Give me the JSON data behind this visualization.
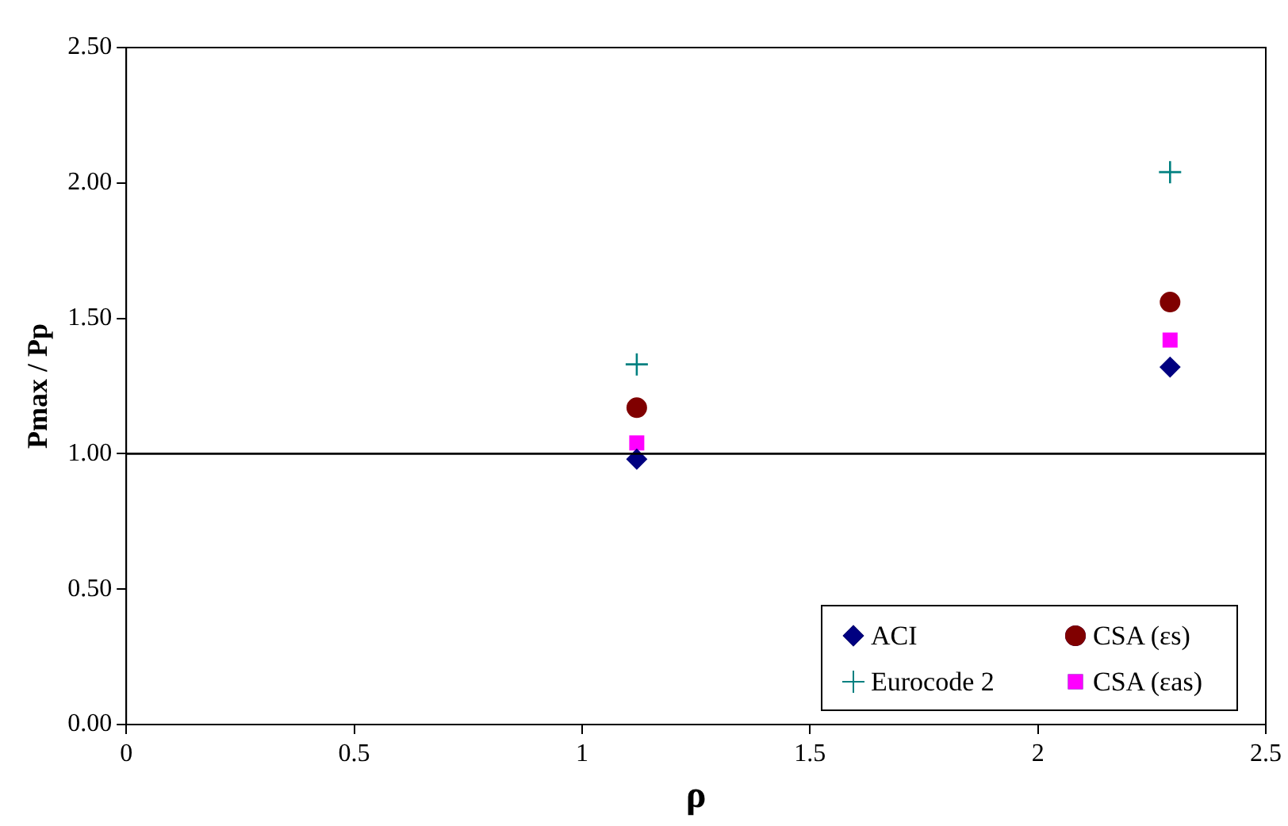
{
  "chart_data": {
    "type": "scatter",
    "xlabel": "ρ",
    "ylabel": "Pmax / Pp",
    "xlim": [
      0,
      2.5
    ],
    "xticks": [
      0,
      0.5,
      1,
      1.5,
      2,
      2.5
    ],
    "ylim": [
      0,
      2.5
    ],
    "yticks": [
      {
        "value": 0,
        "label": "0.00"
      },
      {
        "value": 0.5,
        "label": "0.50"
      },
      {
        "value": 1,
        "label": "1.00"
      },
      {
        "value": 1.5,
        "label": "1.50"
      },
      {
        "value": 2,
        "label": "2.00"
      },
      {
        "value": 2.5,
        "label": "2.50"
      }
    ],
    "grid": false,
    "legend": "bottom right",
    "x": [
      1.12,
      2.29
    ],
    "ref_lines": [
      {
        "axis": "y",
        "value": 1,
        "color": "#000000"
      }
    ],
    "series": [
      {
        "name": "ACI",
        "color": "#000080",
        "marker": "diamond",
        "values": [
          0.98,
          1.32
        ]
      },
      {
        "name": "CSA (εs)",
        "color": "#800000",
        "marker": "circle",
        "values": [
          1.17,
          1.56
        ]
      },
      {
        "name": "Eurocode 2",
        "color": "#008080",
        "marker": "cross",
        "values": [
          1.33,
          2.04
        ]
      },
      {
        "name": "CSA (εas)",
        "color": "#ff00ff",
        "marker": "square",
        "values": [
          1.04,
          1.42
        ]
      }
    ]
  }
}
